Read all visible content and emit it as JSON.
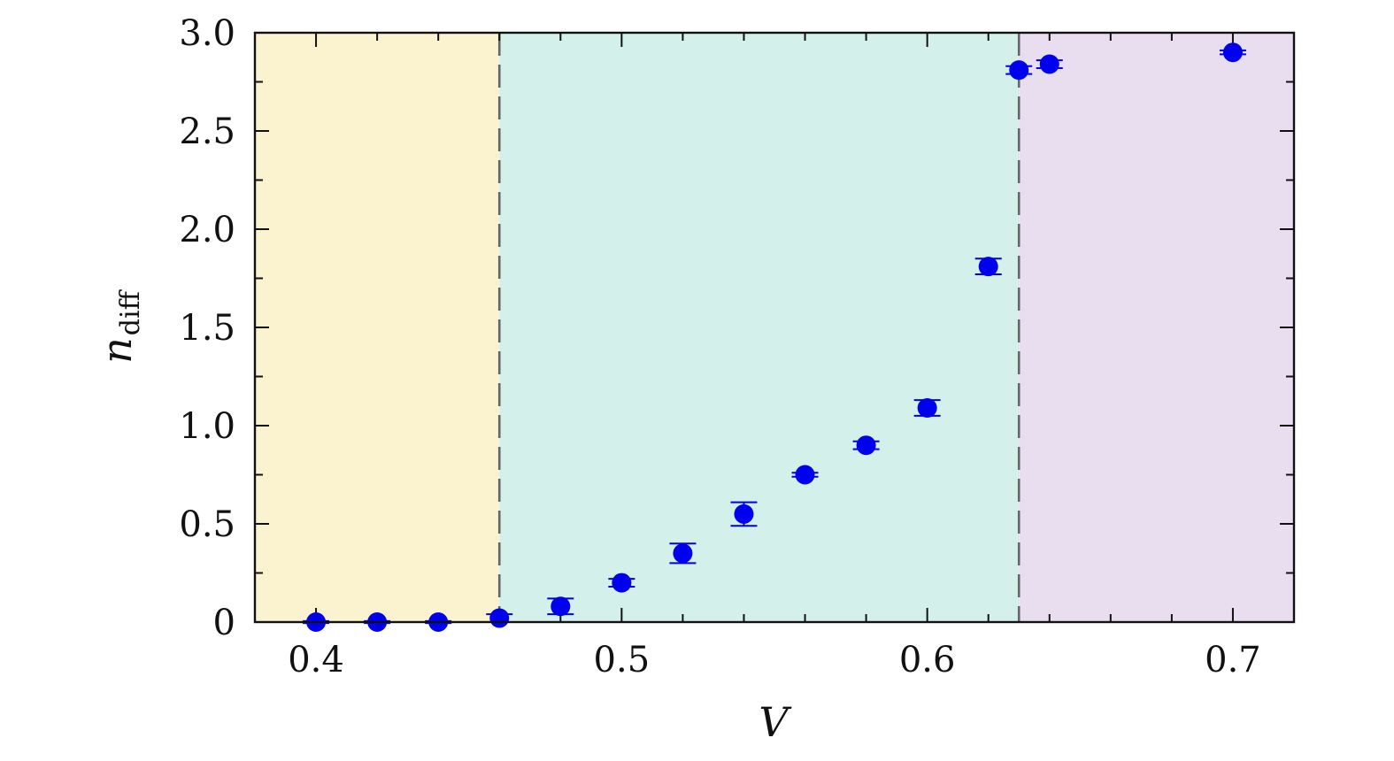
{
  "chart_data": {
    "type": "scatter",
    "title": "",
    "xlabel": "V",
    "ylabel": {
      "base": "n",
      "subscript": "diff"
    },
    "xlim": [
      0.38,
      0.72
    ],
    "ylim": [
      0,
      3.0
    ],
    "xticks": [
      0.4,
      0.5,
      0.6,
      0.7
    ],
    "xtick_labels": [
      "0.4",
      "0.5",
      "0.6",
      "0.7"
    ],
    "yticks": [
      0,
      0.5,
      1.0,
      1.5,
      2.0,
      2.5,
      3.0
    ],
    "ytick_labels": [
      "0",
      "0.5",
      "1.0",
      "1.5",
      "2.0",
      "2.5",
      "3.0"
    ],
    "x_minor_step": 0.02,
    "y_minor_step": 0.25,
    "grid": false,
    "regions": [
      {
        "x_start": 0.38,
        "x_end": 0.46,
        "color": "#fbf2cf"
      },
      {
        "x_start": 0.46,
        "x_end": 0.63,
        "color": "#d3f1ea"
      },
      {
        "x_start": 0.63,
        "x_end": 0.72,
        "color": "#e9def0"
      }
    ],
    "boundaries": [
      0.46,
      0.63
    ],
    "boundary_color": "#666666",
    "marker_color": "#0000ee",
    "series": [
      {
        "x": [
          0.4,
          0.42,
          0.44,
          0.46,
          0.48,
          0.5,
          0.52,
          0.54,
          0.56,
          0.58,
          0.6,
          0.62,
          0.63,
          0.64,
          0.7
        ],
        "y": [
          0.0,
          0.0,
          0.0,
          0.02,
          0.08,
          0.2,
          0.35,
          0.55,
          0.75,
          0.9,
          1.09,
          1.81,
          2.81,
          2.84,
          2.9
        ],
        "yerr": [
          0.005,
          0.005,
          0.005,
          0.02,
          0.04,
          0.02,
          0.05,
          0.06,
          0.01,
          0.02,
          0.04,
          0.04,
          0.02,
          0.02,
          0.01
        ]
      }
    ]
  }
}
